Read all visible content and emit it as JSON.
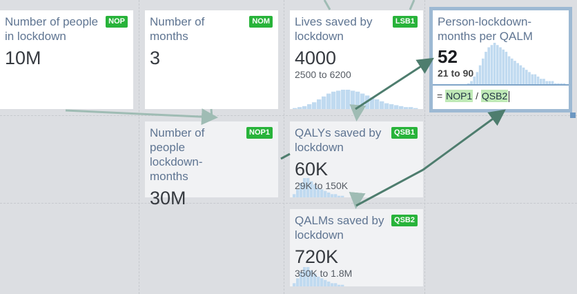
{
  "cards": {
    "nop": {
      "title": "Number of people in lockdown",
      "badge": "NOP",
      "value": "10M"
    },
    "nom": {
      "title": "Number of months",
      "badge": "NOM",
      "value": "3"
    },
    "lsb1": {
      "title": "Lives saved by lockdown",
      "badge": "LSB1",
      "value": "4000",
      "range": "2500 to 6200",
      "histogram": [
        1,
        2,
        3,
        5,
        7,
        10,
        13,
        16,
        18,
        19,
        20,
        20,
        19,
        18,
        16,
        14,
        12,
        10,
        8,
        6,
        5,
        4,
        3,
        2,
        2,
        1
      ]
    },
    "plqalm": {
      "title": "Person-lockdown-months per QALM",
      "value": "52",
      "range": "21 to 90",
      "formula_prefix": "= ",
      "formula_ref1": "NOP1",
      "formula_op": " / ",
      "formula_ref2": "QSB2",
      "histogram": [
        1,
        2,
        4,
        6,
        9,
        12,
        15,
        17,
        18,
        19,
        18,
        17,
        16,
        15,
        13,
        12,
        11,
        10,
        9,
        8,
        7,
        6,
        5,
        5,
        4,
        3,
        3,
        2,
        2,
        2,
        1,
        1,
        1,
        1
      ]
    },
    "nop1": {
      "title": "Number of people lockdown-months",
      "badge": "NOP1",
      "value": "30M"
    },
    "qsb1": {
      "title": "QALYs saved by lockdown",
      "badge": "QSB1",
      "value": "60K",
      "range": "29K to 150K",
      "histogram": [
        2,
        5,
        9,
        12,
        12,
        10,
        8,
        6,
        5,
        4,
        3,
        2,
        2,
        1,
        1
      ]
    },
    "qsb2": {
      "title": "QALMs saved by lockdown",
      "badge": "QSB2",
      "value": "720K",
      "range": "350K to 1.8M",
      "histogram": [
        2,
        5,
        9,
        12,
        12,
        10,
        8,
        6,
        5,
        4,
        3,
        2,
        2,
        1,
        1
      ]
    }
  }
}
